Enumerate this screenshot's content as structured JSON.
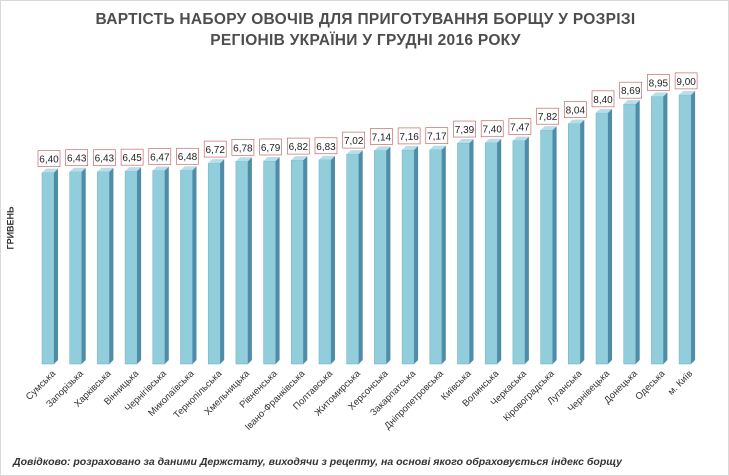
{
  "chart_data": {
    "type": "bar",
    "title": "ВАРТІСТЬ НАБОРУ ОВОЧІВ ДЛЯ ПРИГОТУВАННЯ БОРЩУ У РОЗРІЗІ РЕГІОНІВ УКРАЇНИ У ГРУДНІ 2016 РОКУ",
    "title_lines": [
      "ВАРТІСТЬ НАБОРУ ОВОЧІВ ДЛЯ ПРИГОТУВАННЯ  БОРЩУ У РОЗРІЗІ",
      "РЕГІОНІВ  УКРАЇНИ У ГРУДНІ 2016 РОКУ"
    ],
    "ylabel": "ГРИВЕНЬ",
    "xlabel": "",
    "ylim": [
      0,
      9.5
    ],
    "grid": false,
    "categories": [
      "Сумська",
      "Запорізька",
      "Харківська",
      "Вінницька",
      "Чернігівська",
      "Миколаївська",
      "Тернопільська",
      "Хмельницька",
      "Рівненська",
      "Івано-Франківська",
      "Полтавська",
      "Житомирська",
      "Херсонська",
      "Закарпатська",
      "Дніпропетровська",
      "Київська",
      "Волинська",
      "Черкаська",
      "Кіровоградська",
      "Луганська",
      "Чернівецька",
      "Донецька",
      "Одеська",
      "м. Київ"
    ],
    "values": [
      6.4,
      6.43,
      6.43,
      6.45,
      6.47,
      6.48,
      6.72,
      6.78,
      6.79,
      6.82,
      6.83,
      7.02,
      7.14,
      7.16,
      7.17,
      7.39,
      7.4,
      7.47,
      7.82,
      8.04,
      8.4,
      8.69,
      8.95,
      9.0
    ],
    "value_labels": [
      "6,40",
      "6,43",
      "6,43",
      "6,45",
      "6,47",
      "6,48",
      "6,72",
      "6,78",
      "6,79",
      "6,82",
      "6,83",
      "7,02",
      "7,14",
      "7,16",
      "7,17",
      "7,39",
      "7,40",
      "7,47",
      "7,82",
      "8,04",
      "8,40",
      "8,69",
      "8,95",
      "9,00"
    ],
    "colors": {
      "bar_front": "#92cddc",
      "bar_side": "#4f8ca8",
      "bar_top": "#b7dfea",
      "label_border": "#c0504d"
    }
  },
  "note": "Довідково: розраховано за даними Держстату, виходячи з рецепту, на основі якого обраховується індекс борщу"
}
